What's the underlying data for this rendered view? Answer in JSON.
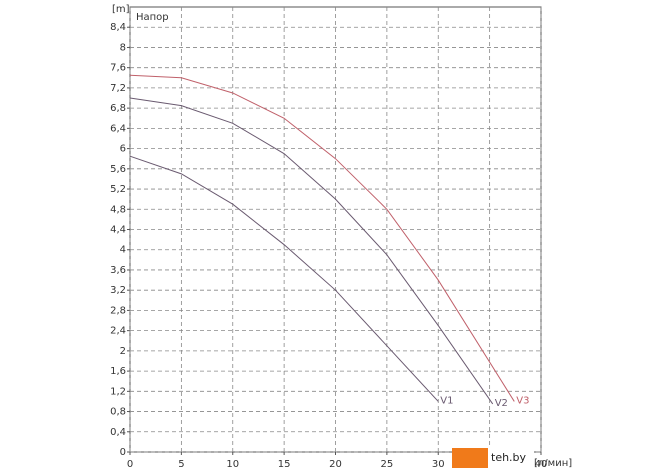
{
  "chart_data": {
    "type": "line",
    "y_label": "[m]",
    "x_label": "[л/мин]",
    "legend": "Напор",
    "xlim": [
      0,
      40
    ],
    "xticks": [
      0,
      5,
      10,
      15,
      20,
      25,
      30,
      35,
      40
    ],
    "ylim": [
      0,
      8.8
    ],
    "yticks": [
      0,
      {
        "value": 0.4,
        "label": "0,4"
      },
      {
        "value": 0.8,
        "label": "0,8"
      },
      {
        "value": 1.2,
        "label": "1,2"
      },
      {
        "value": 1.6,
        "label": "1,6"
      },
      2,
      {
        "value": 2.4,
        "label": "2,4"
      },
      {
        "value": 2.8,
        "label": "2,8"
      },
      {
        "value": 3.2,
        "label": "3,2"
      },
      {
        "value": 3.6,
        "label": "3,6"
      },
      4,
      {
        "value": 4.4,
        "label": "4,4"
      },
      {
        "value": 4.8,
        "label": "4,8"
      },
      {
        "value": 5.2,
        "label": "5,2"
      },
      {
        "value": 5.6,
        "label": "5,6"
      },
      6,
      {
        "value": 6.4,
        "label": "6,4"
      },
      {
        "value": 6.8,
        "label": "6,8"
      },
      {
        "value": 7.2,
        "label": "7,2"
      },
      {
        "value": 7.6,
        "label": "7,6"
      },
      8,
      {
        "value": 8.4,
        "label": "8,4"
      }
    ],
    "grid": true,
    "series": [
      {
        "name": "V1",
        "color": "#6a5a70",
        "x": [
          0,
          5,
          10,
          15,
          20,
          25,
          30
        ],
        "values": [
          5.85,
          5.5,
          4.9,
          4.1,
          3.2,
          2.1,
          1.0
        ]
      },
      {
        "name": "V2",
        "color": "#6a5a70",
        "x": [
          0,
          5,
          10,
          15,
          20,
          25,
          30,
          35.3
        ],
        "values": [
          7.0,
          6.85,
          6.5,
          5.9,
          5.0,
          3.9,
          2.5,
          0.95
        ]
      },
      {
        "name": "V3",
        "color": "#c0606a",
        "x": [
          0,
          5,
          10,
          15,
          20,
          25,
          30,
          37.4
        ],
        "values": [
          7.45,
          7.4,
          7.1,
          6.6,
          5.8,
          4.8,
          3.4,
          1.0
        ]
      }
    ]
  },
  "watermark": "teh.by"
}
